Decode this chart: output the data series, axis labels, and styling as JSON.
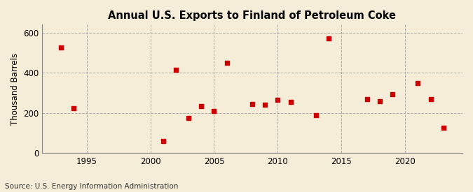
{
  "title": "Annual U.S. Exports to Finland of Petroleum Coke",
  "ylabel": "Thousand Barrels",
  "source": "Source: U.S. Energy Information Administration",
  "outer_background": "#e8d5a3",
  "inner_background": "#f5edd8",
  "plot_bg": "#ffffff",
  "marker_color": "#cc0000",
  "xlim": [
    1991.5,
    2024.5
  ],
  "ylim": [
    0,
    640
  ],
  "yticks": [
    0,
    200,
    400,
    600
  ],
  "xticks": [
    1995,
    2000,
    2005,
    2010,
    2015,
    2020
  ],
  "data": [
    {
      "year": 1993,
      "value": 525
    },
    {
      "year": 1994,
      "value": 225
    },
    {
      "year": 2001,
      "value": 60
    },
    {
      "year": 2002,
      "value": 415
    },
    {
      "year": 2003,
      "value": 175
    },
    {
      "year": 2004,
      "value": 235
    },
    {
      "year": 2005,
      "value": 210
    },
    {
      "year": 2006,
      "value": 450
    },
    {
      "year": 2008,
      "value": 245
    },
    {
      "year": 2009,
      "value": 240
    },
    {
      "year": 2010,
      "value": 265
    },
    {
      "year": 2011,
      "value": 255
    },
    {
      "year": 2013,
      "value": 190
    },
    {
      "year": 2014,
      "value": 570
    },
    {
      "year": 2017,
      "value": 270
    },
    {
      "year": 2018,
      "value": 260
    },
    {
      "year": 2019,
      "value": 295
    },
    {
      "year": 2021,
      "value": 350
    },
    {
      "year": 2022,
      "value": 270
    },
    {
      "year": 2023,
      "value": 125
    }
  ]
}
